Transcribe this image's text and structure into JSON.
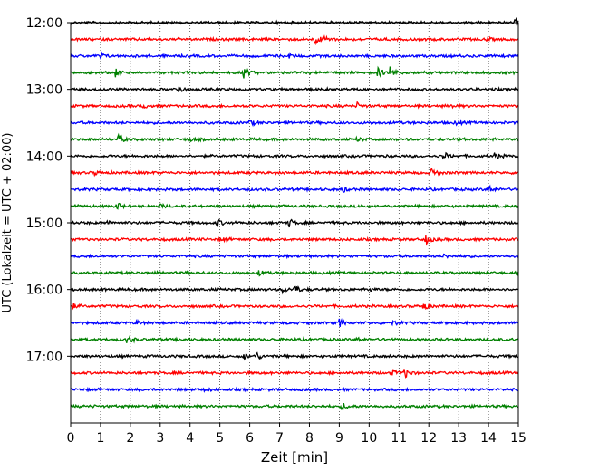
{
  "chart_data": {
    "type": "line",
    "title": "",
    "xlabel": "Zeit  [min]",
    "ylabel": "UTC (Lokalzeit = UTC + 02:00)",
    "xlim": [
      0,
      15
    ],
    "x_ticks": [
      0,
      1,
      2,
      3,
      4,
      5,
      6,
      7,
      8,
      9,
      10,
      11,
      12,
      13,
      14,
      15
    ],
    "y_tick_labels": [
      "12:00",
      "13:00",
      "14:00",
      "15:00",
      "16:00",
      "17:00"
    ],
    "grid": "vertical dotted lines at each minute",
    "start_hour": "12:00",
    "end_hour": "18:00",
    "trace_interval_minutes": 15,
    "color_cycle": [
      "#000000",
      "#ff0000",
      "#0000ff",
      "#008000"
    ],
    "series": [
      {
        "start": "12:00",
        "color": "#000000",
        "events": [
          {
            "t": 14.9,
            "a": 0.3
          }
        ]
      },
      {
        "start": "12:15",
        "color": "#ff0000",
        "events": [
          {
            "t": 8.2,
            "a": 0.6
          },
          {
            "t": 8.5,
            "a": 0.4
          },
          {
            "t": 13.9,
            "a": 0.2
          }
        ]
      },
      {
        "start": "12:30",
        "color": "#0000ff",
        "events": [
          {
            "t": 1.0,
            "a": 0.3
          },
          {
            "t": 7.3,
            "a": 0.2
          }
        ]
      },
      {
        "start": "12:45",
        "color": "#008000",
        "events": [
          {
            "t": 1.5,
            "a": 0.4
          },
          {
            "t": 5.8,
            "a": 0.6
          },
          {
            "t": 10.3,
            "a": 0.5
          },
          {
            "t": 10.7,
            "a": 0.7
          }
        ]
      },
      {
        "start": "13:00",
        "color": "#000000",
        "events": [
          {
            "t": 3.6,
            "a": 0.5
          }
        ]
      },
      {
        "start": "13:15",
        "color": "#ff0000",
        "events": [
          {
            "t": 2.4,
            "a": 0.2
          },
          {
            "t": 9.6,
            "a": 0.3
          },
          {
            "t": 12.7,
            "a": 0.2
          }
        ]
      },
      {
        "start": "13:30",
        "color": "#0000ff",
        "events": [
          {
            "t": 6.0,
            "a": 0.3
          },
          {
            "t": 12.9,
            "a": 0.2
          }
        ]
      },
      {
        "start": "13:45",
        "color": "#008000",
        "events": [
          {
            "t": 1.6,
            "a": 0.5
          },
          {
            "t": 4.0,
            "a": 0.2
          },
          {
            "t": 9.6,
            "a": 0.2
          }
        ]
      },
      {
        "start": "14:00",
        "color": "#000000",
        "events": [
          {
            "t": 12.5,
            "a": 0.4
          },
          {
            "t": 14.2,
            "a": 0.3
          }
        ]
      },
      {
        "start": "14:15",
        "color": "#ff0000",
        "events": [
          {
            "t": 0.8,
            "a": 0.2
          },
          {
            "t": 12.1,
            "a": 0.5
          }
        ]
      },
      {
        "start": "14:30",
        "color": "#0000ff",
        "events": [
          {
            "t": 9.1,
            "a": 0.3
          },
          {
            "t": 14.0,
            "a": 0.5
          }
        ]
      },
      {
        "start": "14:45",
        "color": "#008000",
        "events": [
          {
            "t": 1.5,
            "a": 0.5
          },
          {
            "t": 3.0,
            "a": 0.2
          },
          {
            "t": 9.7,
            "a": 0.2
          }
        ]
      },
      {
        "start": "15:00",
        "color": "#000000",
        "events": [
          {
            "t": 1.2,
            "a": 0.2
          },
          {
            "t": 4.9,
            "a": 0.4
          },
          {
            "t": 7.3,
            "a": 0.5
          }
        ]
      },
      {
        "start": "15:15",
        "color": "#ff0000",
        "events": [
          {
            "t": 5.1,
            "a": 0.2
          },
          {
            "t": 11.9,
            "a": 0.5
          }
        ]
      },
      {
        "start": "15:30",
        "color": "#0000ff",
        "events": [
          {
            "t": 12.5,
            "a": 0.2
          }
        ]
      },
      {
        "start": "15:45",
        "color": "#008000",
        "events": [
          {
            "t": 6.3,
            "a": 0.3
          }
        ]
      },
      {
        "start": "16:00",
        "color": "#000000",
        "events": [
          {
            "t": 7.1,
            "a": 0.3
          },
          {
            "t": 7.5,
            "a": 0.5
          },
          {
            "t": 10.0,
            "a": 0.2
          }
        ]
      },
      {
        "start": "16:15",
        "color": "#ff0000",
        "events": [
          {
            "t": 0.1,
            "a": 0.2
          },
          {
            "t": 11.8,
            "a": 0.5
          }
        ]
      },
      {
        "start": "16:30",
        "color": "#0000ff",
        "events": [
          {
            "t": 2.2,
            "a": 0.2
          },
          {
            "t": 9.0,
            "a": 0.4
          },
          {
            "t": 10.8,
            "a": 0.2
          }
        ]
      },
      {
        "start": "16:45",
        "color": "#008000",
        "events": [
          {
            "t": 1.9,
            "a": 0.5
          },
          {
            "t": 9.6,
            "a": 0.2
          }
        ]
      },
      {
        "start": "17:00",
        "color": "#000000",
        "events": [
          {
            "t": 5.8,
            "a": 0.3
          },
          {
            "t": 6.2,
            "a": 0.5
          }
        ]
      },
      {
        "start": "17:15",
        "color": "#ff0000",
        "events": [
          {
            "t": 10.8,
            "a": 0.3
          },
          {
            "t": 11.2,
            "a": 0.6
          }
        ]
      },
      {
        "start": "17:30",
        "color": "#0000ff",
        "events": [
          {
            "t": 4.5,
            "a": 0.2
          }
        ]
      },
      {
        "start": "17:45",
        "color": "#008000",
        "events": [
          {
            "t": 9.1,
            "a": 0.4
          }
        ]
      }
    ]
  }
}
